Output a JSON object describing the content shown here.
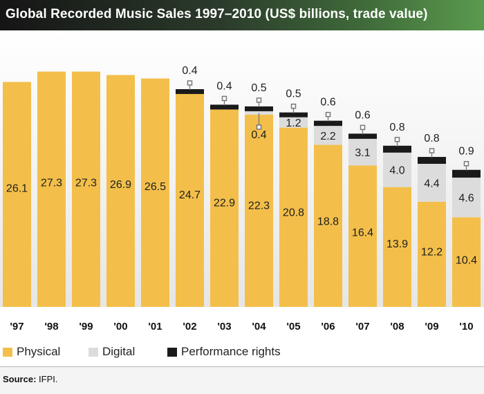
{
  "title": "Global Recorded Music Sales 1997–2010 (US$ billions, trade value)",
  "source": {
    "label": "Source:",
    "value": "IFPI."
  },
  "colors": {
    "physical": "#f3bf4a",
    "digital": "#dcdcdc",
    "performance": "#1a1a1a",
    "connector": "#777777"
  },
  "chart_data": {
    "type": "bar",
    "stacked": true,
    "title": "Global Recorded Music Sales 1997–2010 (US$ billions, trade value)",
    "categories": [
      "'97",
      "'98",
      "'99",
      "'00",
      "'01",
      "'02",
      "'03",
      "'04",
      "'05",
      "'06",
      "'07",
      "'08",
      "'09",
      "'10"
    ],
    "series": [
      {
        "name": "Physical",
        "values": [
          26.1,
          27.3,
          27.3,
          26.9,
          26.5,
          24.7,
          22.9,
          22.3,
          20.8,
          18.8,
          16.4,
          13.9,
          12.2,
          10.4
        ]
      },
      {
        "name": "Digital",
        "values": [
          0,
          0,
          0,
          0,
          0,
          0,
          0,
          0.4,
          1.2,
          2.2,
          3.1,
          4.0,
          4.4,
          4.6
        ]
      },
      {
        "name": "Performance rights",
        "values": [
          0,
          0,
          0,
          0,
          0,
          0.4,
          0.4,
          0.5,
          0.5,
          0.6,
          0.6,
          0.8,
          0.8,
          0.9
        ]
      }
    ],
    "value_labels": {
      "Physical": [
        "26.1",
        "27.3",
        "27.3",
        "26.9",
        "26.5",
        "24.7",
        "22.9",
        "22.3",
        "20.8",
        "18.8",
        "16.4",
        "13.9",
        "12.2",
        "10.4"
      ],
      "Digital": [
        "",
        "",
        "",
        "",
        "",
        "",
        "",
        "0.4",
        "1.2",
        "2.2",
        "3.1",
        "4.0",
        "4.4",
        "4.6"
      ],
      "Performance rights": [
        "",
        "",
        "",
        "",
        "",
        "0.4",
        "0.4",
        "0.5",
        "0.5",
        "0.6",
        "0.6",
        "0.8",
        "0.8",
        "0.9"
      ]
    },
    "xlabel": "",
    "ylabel": "",
    "ylim": [
      0,
      28
    ],
    "legend": [
      {
        "name": "Physical",
        "color": "#f3bf4a"
      },
      {
        "name": "Digital",
        "color": "#dcdcdc"
      },
      {
        "name": "Performance rights",
        "color": "#1a1a1a"
      }
    ],
    "legend_position": "bottom-left",
    "grid": false
  }
}
